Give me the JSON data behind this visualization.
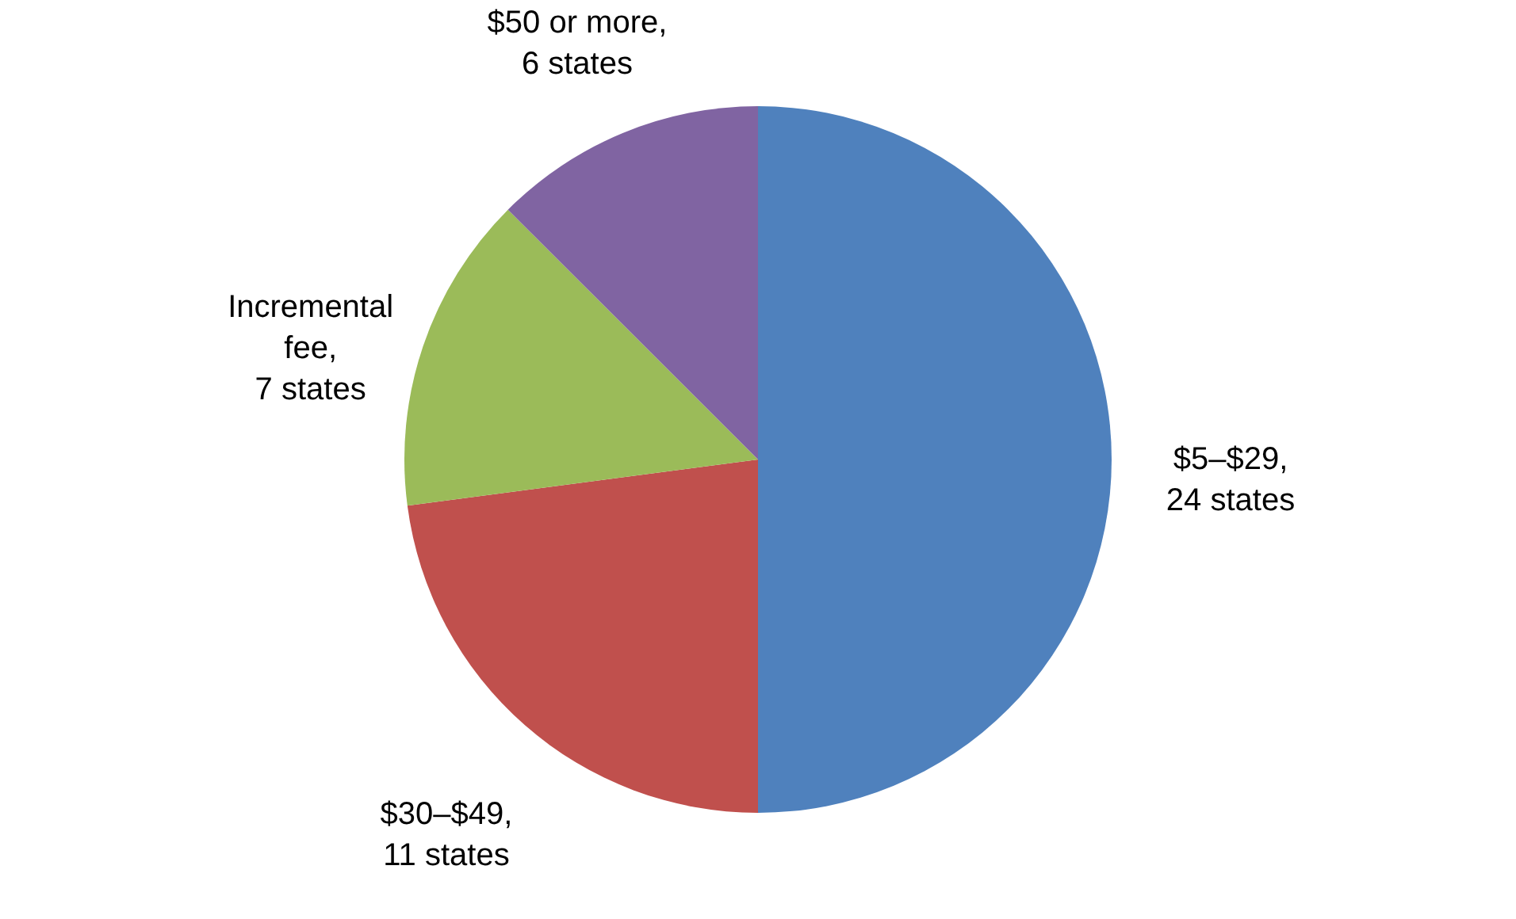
{
  "chart_data": {
    "type": "pie",
    "categories": [
      "$5–$29, 24 states",
      "$30–$49, 11 states",
      "Incremental fee, 7 states",
      "$50 or more, 6 states"
    ],
    "values": [
      24,
      11,
      7,
      6
    ],
    "colors": [
      "#4f81bd",
      "#c0504d",
      "#9bbb59",
      "#8064a2"
    ],
    "legend": false
  }
}
